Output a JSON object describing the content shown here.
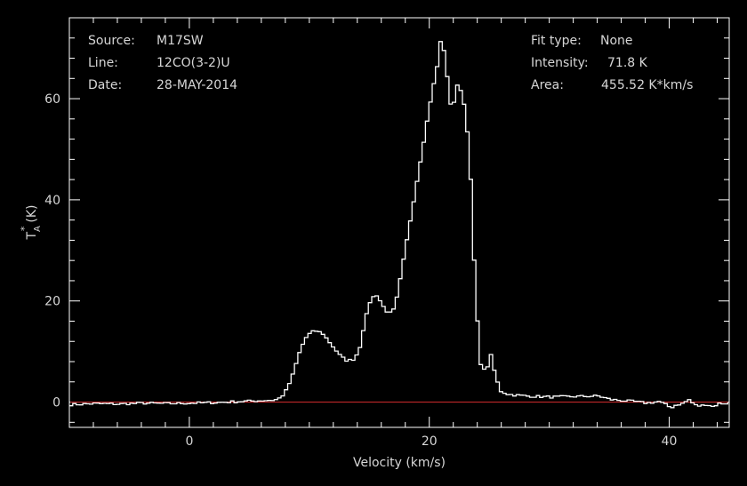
{
  "chart_data": {
    "type": "line",
    "xlabel": "Velocity (km/s)",
    "ylabel_main": "T",
    "ylabel_sub": "A",
    "ylabel_sup": "*",
    "ylabel_unit": "(K)",
    "xlim": [
      -10,
      45
    ],
    "ylim": [
      -5,
      76
    ],
    "xticks": [
      0,
      20,
      40
    ],
    "yticks": [
      0,
      20,
      40,
      60
    ],
    "xtick_labels": [
      "0",
      "20",
      "40"
    ],
    "ytick_labels": [
      "0",
      "20",
      "40",
      "60"
    ],
    "colors": {
      "background": "#000000",
      "spectrum": "#ffffff",
      "baseline": "#c0282a",
      "axes": "#ffffff",
      "text": "#d6d6d6"
    },
    "baseline_value": 0,
    "info_left": [
      {
        "key": "Source:",
        "value": "M17SW"
      },
      {
        "key": "Line:",
        "value": "12CO(3-2)U"
      },
      {
        "key": "Date:",
        "value": "28-MAY-2014"
      }
    ],
    "info_right": [
      {
        "key": "Fit type:",
        "value": "None"
      },
      {
        "key": "Intensity:",
        "value": "71.8 K"
      },
      {
        "key": "Area:",
        "value": "455.52 K*km/s"
      }
    ],
    "series": [
      {
        "style": "step",
        "x": [
          -10,
          -8,
          -6,
          -4,
          -2,
          0,
          2,
          4,
          5,
          6,
          7,
          7.5,
          8,
          8.5,
          9,
          9.5,
          10,
          10.5,
          11,
          11.5,
          12,
          12.5,
          13,
          13.5,
          14,
          14.5,
          15,
          15.5,
          16,
          16.5,
          17,
          17.5,
          18,
          18.5,
          19,
          19.5,
          20,
          20.5,
          20.8,
          21.2,
          21.5,
          21.8,
          22.2,
          22.6,
          23,
          23.3,
          23.6,
          23.9,
          24.2,
          24.6,
          25,
          25.4,
          25.8,
          26.5,
          28,
          30,
          32,
          34,
          35,
          37,
          38,
          39,
          39.5,
          40,
          40.5,
          41,
          41.5,
          42,
          42.5,
          43,
          43.5,
          44,
          45
        ],
        "y": [
          -0.5,
          -0.3,
          -0.4,
          -0.2,
          -0.3,
          -0.2,
          -0.1,
          0.1,
          0.2,
          0.3,
          0.4,
          0.9,
          2.5,
          5.5,
          9.5,
          12.5,
          13.8,
          14.1,
          13.5,
          12,
          10.5,
          9,
          8.2,
          8.4,
          10,
          16,
          20.5,
          21.2,
          19,
          17.4,
          18.5,
          25,
          32,
          39,
          46,
          53,
          60,
          66,
          71.2,
          69,
          60,
          58,
          62.5,
          61.5,
          55,
          45,
          28,
          15,
          6.5,
          6.2,
          9.2,
          5,
          2.2,
          1.5,
          1.2,
          1.0,
          1.1,
          1.2,
          0.5,
          0.1,
          -0.2,
          0.1,
          -0.4,
          -1.1,
          -0.5,
          -0.3,
          0.5,
          -0.6,
          -0.8,
          -0.4,
          -0.9,
          -0.3,
          -0.2
        ]
      }
    ]
  }
}
